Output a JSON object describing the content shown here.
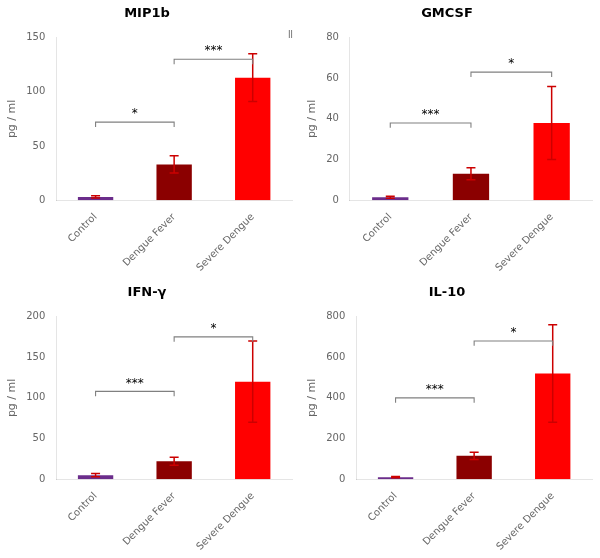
{
  "chart_data": [
    {
      "type": "bar",
      "title": "MIP1b",
      "ylabel": "pg / ml",
      "categories": [
        "Control",
        "Dengue Fever",
        "Severe Dengue"
      ],
      "values": [
        3,
        33,
        113
      ],
      "errors": [
        1,
        8,
        22
      ],
      "colors": [
        "#6B2D8B",
        "#8B0000",
        "#FF0000"
      ],
      "ylim": [
        0,
        150
      ],
      "yticks": [
        0,
        50,
        100,
        150
      ],
      "grid": false,
      "annotations": [
        {
          "text": "*",
          "x1": "Control",
          "x2": "Dengue Fever",
          "y": 72
        },
        {
          "text": "***",
          "x1": "Dengue Fever",
          "x2": "Severe Dengue",
          "y": 130
        },
        {
          "text": "Ⅱ",
          "x": 2.48,
          "y": 147
        }
      ]
    },
    {
      "type": "bar",
      "title": "GMCSF",
      "ylabel": "pg / ml",
      "categories": [
        "Control",
        "Dengue Fever",
        "Severe Dengue"
      ],
      "values": [
        1.5,
        13,
        38
      ],
      "errors": [
        0.5,
        3,
        18
      ],
      "colors": [
        "#6B2D8B",
        "#8B0000",
        "#FF0000"
      ],
      "ylim": [
        0,
        80
      ],
      "yticks": [
        0,
        20,
        40,
        60,
        80
      ],
      "grid": false,
      "annotations": [
        {
          "text": "***",
          "x1": "Control",
          "x2": "Dengue Fever",
          "y": 38
        },
        {
          "text": "*",
          "x1": "Dengue Fever",
          "x2": "Severe Dengue",
          "y": 63
        }
      ]
    },
    {
      "type": "bar",
      "title": "IFN-γ",
      "ylabel": "pg / ml",
      "categories": [
        "Control",
        "Dengue Fever",
        "Severe Dengue"
      ],
      "values": [
        5,
        22,
        120
      ],
      "errors": [
        2,
        5,
        50
      ],
      "colors": [
        "#6B2D8B",
        "#8B0000",
        "#FF0000"
      ],
      "ylim": [
        0,
        200
      ],
      "yticks": [
        0,
        50,
        100,
        150,
        200
      ],
      "grid": false,
      "annotations": [
        {
          "text": "***",
          "x1": "Control",
          "x2": "Dengue Fever",
          "y": 108
        },
        {
          "text": "*",
          "x1": "Dengue Fever",
          "x2": "Severe Dengue",
          "y": 175
        }
      ]
    },
    {
      "type": "bar",
      "title": "IL-10",
      "ylabel": "pg / ml",
      "categories": [
        "Control",
        "Dengue Fever",
        "Severe Dengue"
      ],
      "values": [
        10,
        115,
        520
      ],
      "errors": [
        3,
        18,
        240
      ],
      "colors": [
        "#6B2D8B",
        "#8B0000",
        "#FF0000"
      ],
      "ylim": [
        0,
        800
      ],
      "yticks": [
        0,
        200,
        400,
        600,
        800
      ],
      "grid": false,
      "annotations": [
        {
          "text": "***",
          "x1": "Control",
          "x2": "Dengue Fever",
          "y": 400
        },
        {
          "text": "*",
          "x1": "Dengue Fever",
          "x2": "Severe Dengue",
          "y": 680
        }
      ]
    }
  ]
}
